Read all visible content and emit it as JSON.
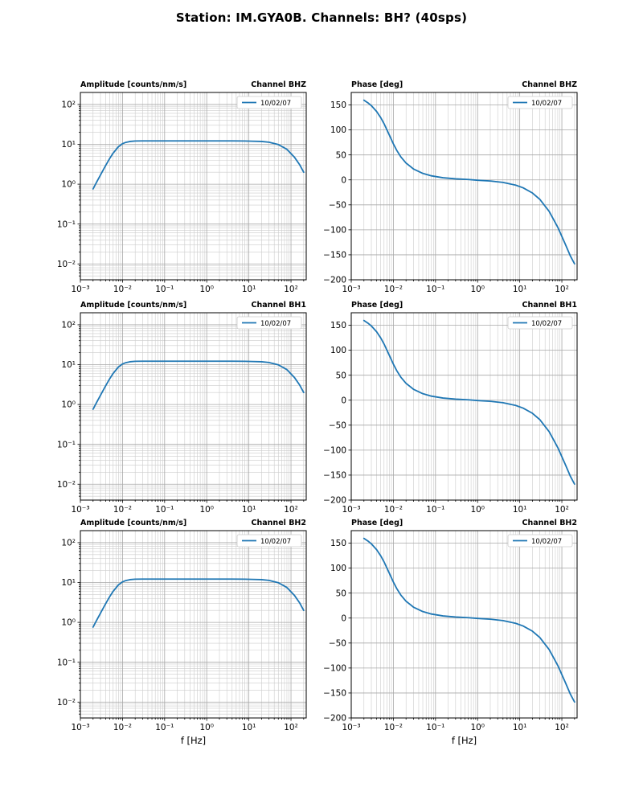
{
  "figure": {
    "title": "Station: IM.GYA0B. Channels: BH? (40sps)"
  },
  "colors": {
    "line": "#1f77b4",
    "grid_major": "#a8a8a8",
    "grid_minor": "#cccccc",
    "legend_border": "#cccccc",
    "axes": "#000000",
    "background": "#ffffff"
  },
  "xlabel": "f [Hz]",
  "legend_label": "10/02/07",
  "chart_data": [
    {
      "panel": "BHZ-amplitude",
      "type": "line",
      "title_left": "Amplitude [counts/nm/s]",
      "title_right": "Channel BHZ",
      "xlabel": "f [Hz]",
      "xscale": "log",
      "yscale": "log",
      "xlim": [
        0.001,
        230
      ],
      "ylim": [
        0.004,
        200
      ],
      "xticks": [
        0.001,
        0.01,
        0.1,
        1,
        10,
        100
      ],
      "yticks": [
        0.01,
        0.1,
        1,
        10,
        100
      ],
      "grid": "both",
      "legend": [
        "10/02/07"
      ],
      "series": [
        {
          "name": "10/02/07",
          "x": [
            0.002,
            0.0025,
            0.003,
            0.004,
            0.005,
            0.006,
            0.008,
            0.01,
            0.012,
            0.015,
            0.02,
            0.03,
            0.05,
            0.08,
            0.15,
            0.3,
            0.6,
            1,
            2,
            4,
            8,
            12,
            20,
            30,
            50,
            80,
            120,
            160,
            200
          ],
          "y": [
            0.76,
            1.19,
            1.7,
            2.97,
            4.47,
            6.03,
            8.71,
            10.4,
            11.2,
            11.8,
            12.1,
            12.2,
            12.2,
            12.2,
            12.2,
            12.2,
            12.2,
            12.2,
            12.2,
            12.2,
            12.1,
            12.0,
            11.8,
            11.3,
            9.9,
            7.5,
            4.8,
            3.1,
            2.0
          ]
        }
      ]
    },
    {
      "panel": "BHZ-phase",
      "type": "line",
      "title_left": "Phase [deg]",
      "title_right": "Channel BHZ",
      "xlabel": "f [Hz]",
      "xscale": "log",
      "yscale": "linear",
      "xlim": [
        0.001,
        230
      ],
      "ylim": [
        -200,
        175
      ],
      "xticks": [
        0.001,
        0.01,
        0.1,
        1,
        10,
        100
      ],
      "yticks": [
        -200,
        -150,
        -100,
        -50,
        0,
        50,
        100,
        150
      ],
      "grid": "x-both-y-major",
      "legend": [
        "10/02/07"
      ],
      "series": [
        {
          "name": "10/02/07",
          "x": [
            0.002,
            0.0025,
            0.003,
            0.004,
            0.005,
            0.006,
            0.008,
            0.01,
            0.012,
            0.015,
            0.02,
            0.03,
            0.05,
            0.08,
            0.15,
            0.3,
            0.6,
            1,
            2,
            4,
            8,
            12,
            20,
            30,
            50,
            80,
            120,
            160,
            200
          ],
          "y": [
            159.5,
            154.1,
            148.6,
            137.0,
            124.8,
            112.6,
            90.0,
            72.2,
            59.2,
            46.2,
            33.7,
            21.9,
            13.0,
            8.1,
            4.3,
            2.1,
            0.8,
            -0.7,
            -2.3,
            -5.1,
            -10.5,
            -15.8,
            -26.2,
            -39.0,
            -63.1,
            -94.8,
            -128.1,
            -152.7,
            -168.0
          ]
        }
      ]
    },
    {
      "panel": "BH1-amplitude",
      "type": "line",
      "title_left": "Amplitude [counts/nm/s]",
      "title_right": "Channel BH1",
      "xlabel": "f [Hz]",
      "xscale": "log",
      "yscale": "log",
      "xlim": [
        0.001,
        230
      ],
      "ylim": [
        0.004,
        200
      ],
      "xticks": [
        0.001,
        0.01,
        0.1,
        1,
        10,
        100
      ],
      "yticks": [
        0.01,
        0.1,
        1,
        10,
        100
      ],
      "grid": "both",
      "legend": [
        "10/02/07"
      ],
      "series": [
        {
          "name": "10/02/07",
          "x": [
            0.002,
            0.0025,
            0.003,
            0.004,
            0.005,
            0.006,
            0.008,
            0.01,
            0.012,
            0.015,
            0.02,
            0.03,
            0.05,
            0.08,
            0.15,
            0.3,
            0.6,
            1,
            2,
            4,
            8,
            12,
            20,
            30,
            50,
            80,
            120,
            160,
            200
          ],
          "y": [
            0.76,
            1.19,
            1.7,
            2.97,
            4.47,
            6.03,
            8.71,
            10.4,
            11.2,
            11.8,
            12.1,
            12.2,
            12.2,
            12.2,
            12.2,
            12.2,
            12.2,
            12.2,
            12.2,
            12.2,
            12.1,
            12.0,
            11.8,
            11.3,
            9.9,
            7.5,
            4.8,
            3.1,
            2.0
          ]
        }
      ]
    },
    {
      "panel": "BH1-phase",
      "type": "line",
      "title_left": "Phase [deg]",
      "title_right": "Channel BH1",
      "xlabel": "f [Hz]",
      "xscale": "log",
      "yscale": "linear",
      "xlim": [
        0.001,
        230
      ],
      "ylim": [
        -200,
        175
      ],
      "xticks": [
        0.001,
        0.01,
        0.1,
        1,
        10,
        100
      ],
      "yticks": [
        -200,
        -150,
        -100,
        -50,
        0,
        50,
        100,
        150
      ],
      "grid": "x-both-y-major",
      "legend": [
        "10/02/07"
      ],
      "series": [
        {
          "name": "10/02/07",
          "x": [
            0.002,
            0.0025,
            0.003,
            0.004,
            0.005,
            0.006,
            0.008,
            0.01,
            0.012,
            0.015,
            0.02,
            0.03,
            0.05,
            0.08,
            0.15,
            0.3,
            0.6,
            1,
            2,
            4,
            8,
            12,
            20,
            30,
            50,
            80,
            120,
            160,
            200
          ],
          "y": [
            159.5,
            154.1,
            148.6,
            137.0,
            124.8,
            112.6,
            90.0,
            72.2,
            59.2,
            46.2,
            33.7,
            21.9,
            13.0,
            8.1,
            4.3,
            2.1,
            0.8,
            -0.7,
            -2.3,
            -5.1,
            -10.5,
            -15.8,
            -26.2,
            -39.0,
            -63.1,
            -94.8,
            -128.1,
            -152.7,
            -168.0
          ]
        }
      ]
    },
    {
      "panel": "BH2-amplitude",
      "type": "line",
      "title_left": "Amplitude [counts/nm/s]",
      "title_right": "Channel BH2",
      "xlabel": "f [Hz]",
      "xscale": "log",
      "yscale": "log",
      "xlim": [
        0.001,
        230
      ],
      "ylim": [
        0.004,
        200
      ],
      "xticks": [
        0.001,
        0.01,
        0.1,
        1,
        10,
        100
      ],
      "yticks": [
        0.01,
        0.1,
        1,
        10,
        100
      ],
      "grid": "both",
      "legend": [
        "10/02/07"
      ],
      "series": [
        {
          "name": "10/02/07",
          "x": [
            0.002,
            0.0025,
            0.003,
            0.004,
            0.005,
            0.006,
            0.008,
            0.01,
            0.012,
            0.015,
            0.02,
            0.03,
            0.05,
            0.08,
            0.15,
            0.3,
            0.6,
            1,
            2,
            4,
            8,
            12,
            20,
            30,
            50,
            80,
            120,
            160,
            200
          ],
          "y": [
            0.76,
            1.19,
            1.7,
            2.97,
            4.47,
            6.03,
            8.71,
            10.4,
            11.2,
            11.8,
            12.1,
            12.2,
            12.2,
            12.2,
            12.2,
            12.2,
            12.2,
            12.2,
            12.2,
            12.2,
            12.1,
            12.0,
            11.8,
            11.3,
            9.9,
            7.5,
            4.8,
            3.1,
            2.0
          ]
        }
      ]
    },
    {
      "panel": "BH2-phase",
      "type": "line",
      "title_left": "Phase [deg]",
      "title_right": "Channel BH2",
      "xlabel": "f [Hz]",
      "xscale": "log",
      "yscale": "linear",
      "xlim": [
        0.001,
        230
      ],
      "ylim": [
        -200,
        175
      ],
      "xticks": [
        0.001,
        0.01,
        0.1,
        1,
        10,
        100
      ],
      "yticks": [
        -200,
        -150,
        -100,
        -50,
        0,
        50,
        100,
        150
      ],
      "grid": "x-both-y-major",
      "legend": [
        "10/02/07"
      ],
      "series": [
        {
          "name": "10/02/07",
          "x": [
            0.002,
            0.0025,
            0.003,
            0.004,
            0.005,
            0.006,
            0.008,
            0.01,
            0.012,
            0.015,
            0.02,
            0.03,
            0.05,
            0.08,
            0.15,
            0.3,
            0.6,
            1,
            2,
            4,
            8,
            12,
            20,
            30,
            50,
            80,
            120,
            160,
            200
          ],
          "y": [
            159.5,
            154.1,
            148.6,
            137.0,
            124.8,
            112.6,
            90.0,
            72.2,
            59.2,
            46.2,
            33.7,
            21.9,
            13.0,
            8.1,
            4.3,
            2.1,
            0.8,
            -0.7,
            -2.3,
            -5.1,
            -10.5,
            -15.8,
            -26.2,
            -39.0,
            -63.1,
            -94.8,
            -128.1,
            -152.7,
            -168.0
          ]
        }
      ]
    }
  ]
}
